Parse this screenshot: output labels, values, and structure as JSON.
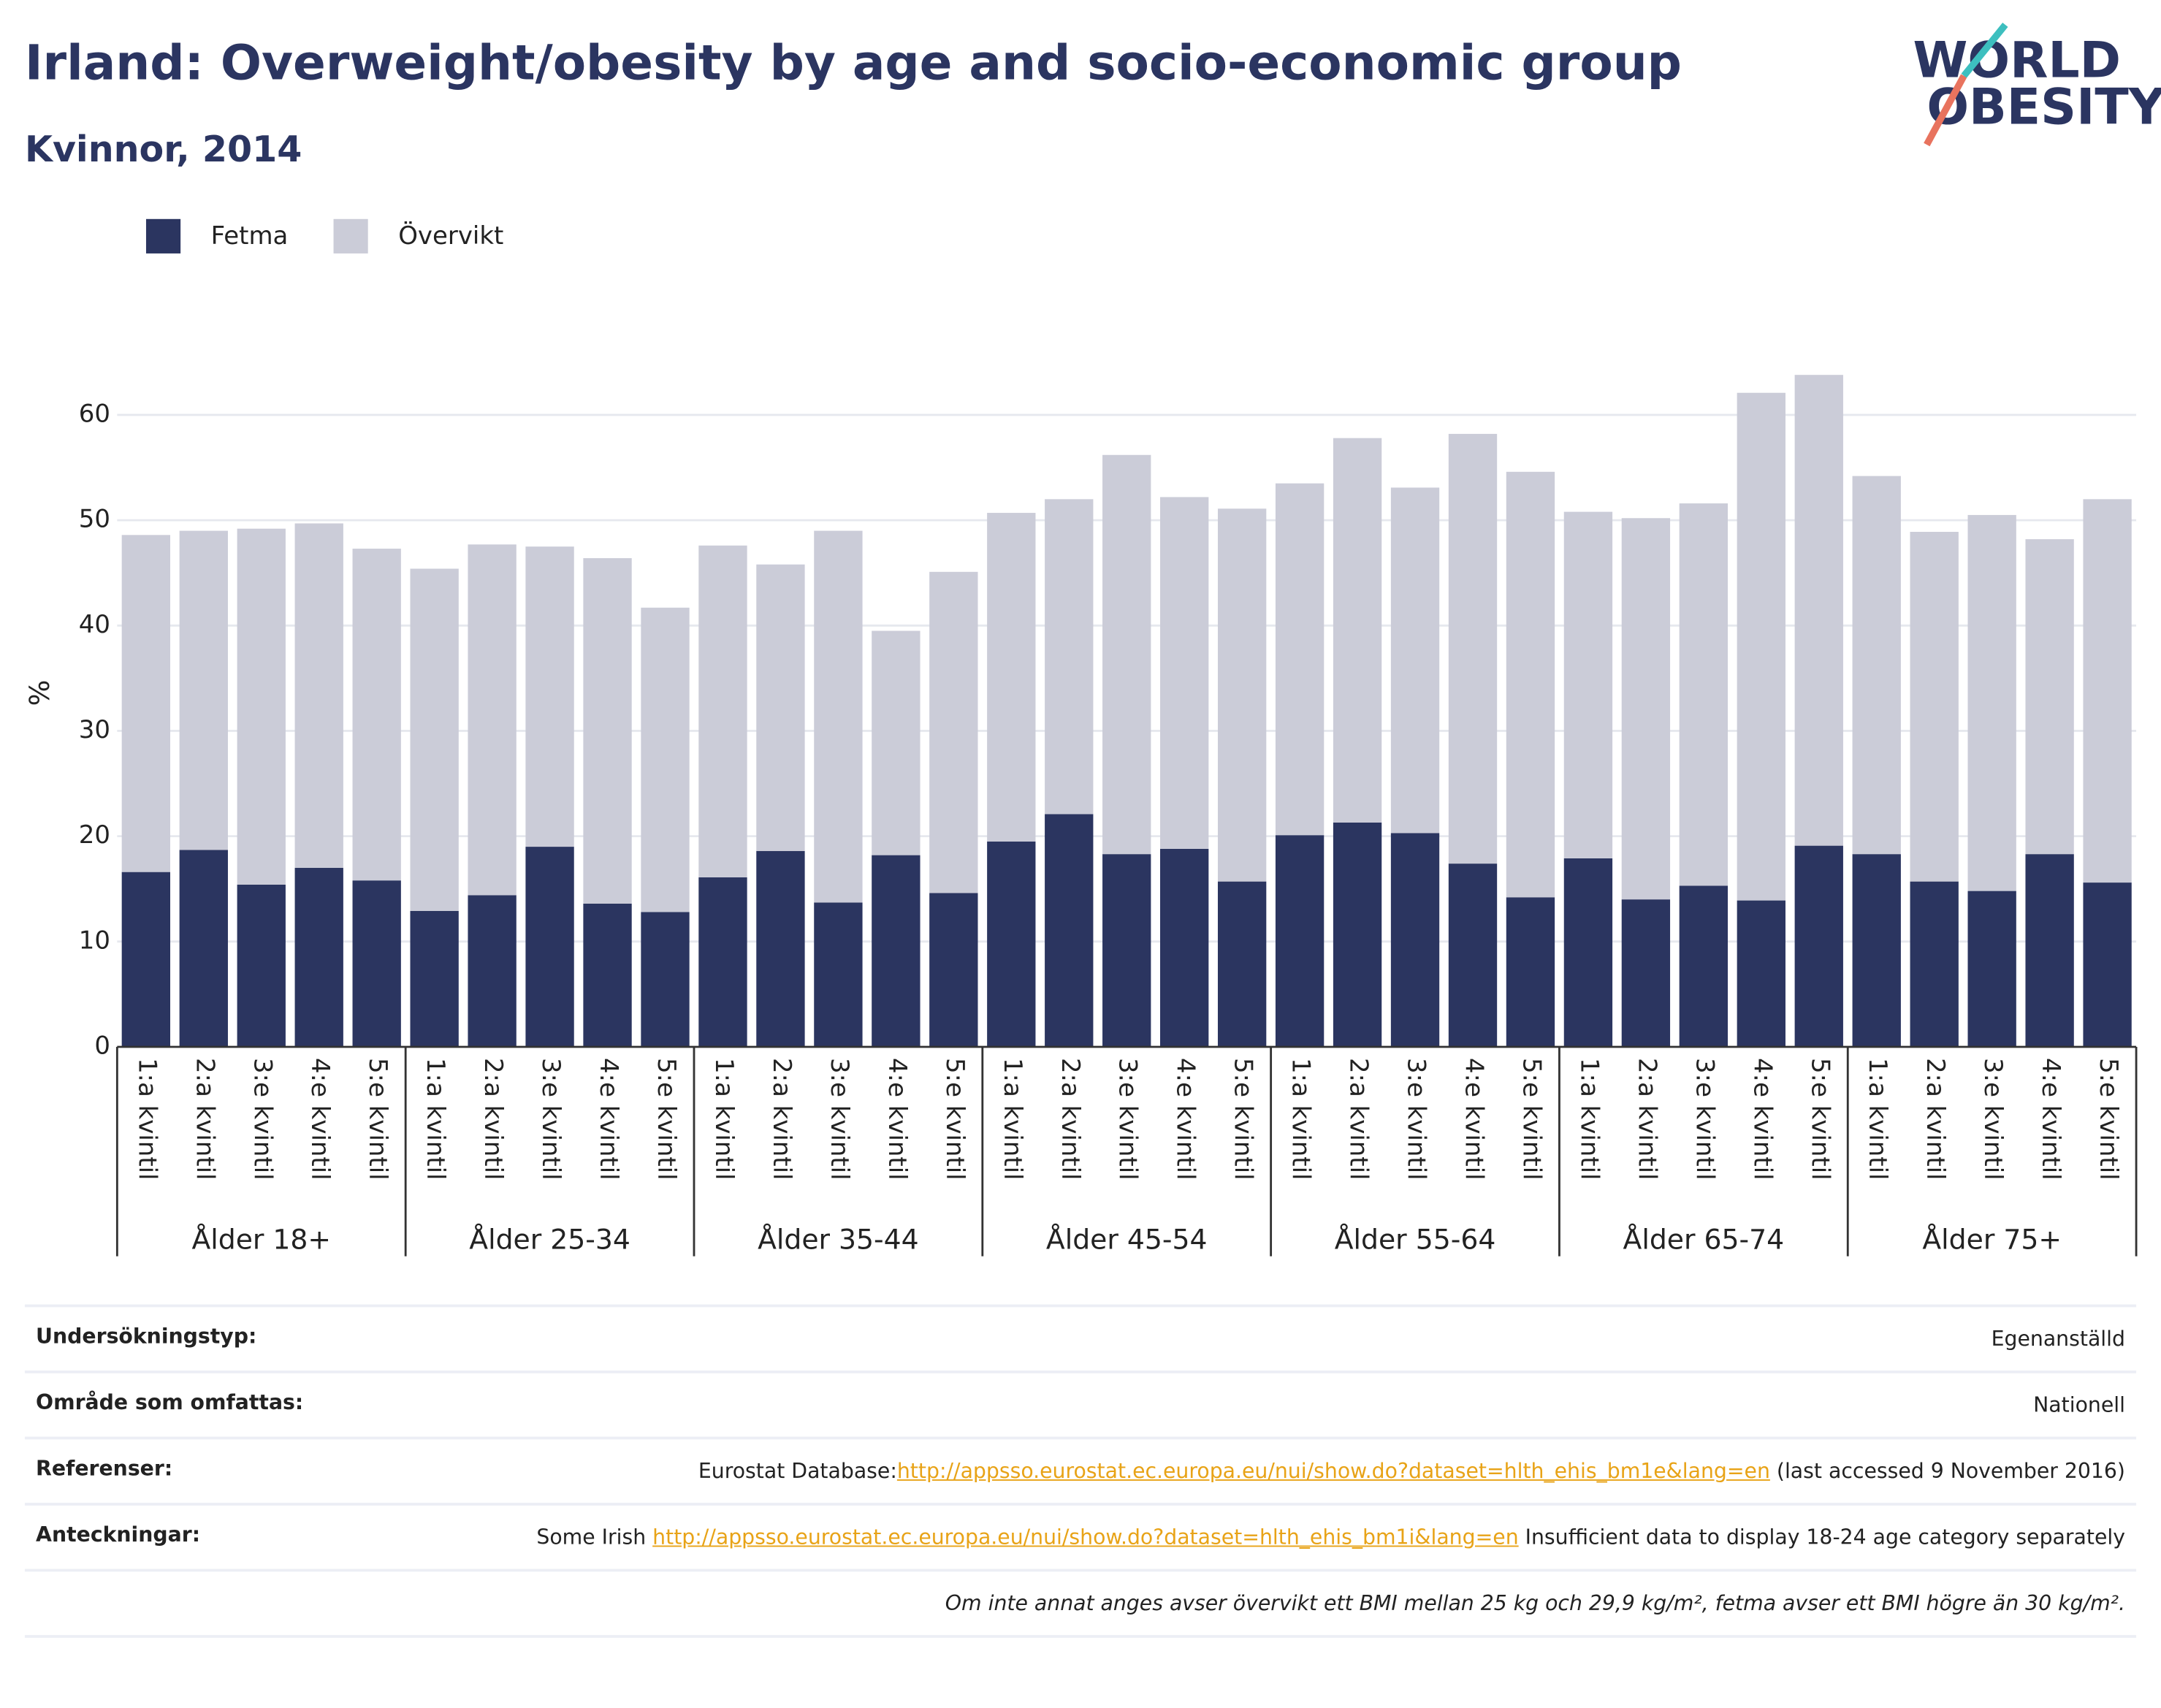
{
  "logo": {
    "line1": "WORLD",
    "line2": "OBESITY"
  },
  "chart_data": {
    "type": "stacked_bar",
    "title": "Irland: Overweight/obesity by age and socio-economic group",
    "subtitle": "Kvinnor, 2014",
    "ylabel": "%",
    "ylim": [
      0,
      65
    ],
    "yticks": [
      0,
      10,
      20,
      30,
      40,
      50,
      60
    ],
    "grid": true,
    "legend": "top-left",
    "groups": [
      "Ålder 18+",
      "Ålder 25-34",
      "Ålder 35-44",
      "Ålder 45-54",
      "Ålder 55-64",
      "Ålder 65-74",
      "Ålder 75+"
    ],
    "categories": [
      "1:a kvintil",
      "2:a kvintil",
      "3:e kvintil",
      "4:e kvintil",
      "5:e kvintil",
      "1:a kvintil",
      "2:a kvintil",
      "3:e kvintil",
      "4:e kvintil",
      "5:e kvintil",
      "1:a kvintil",
      "2:a kvintil",
      "3:e kvintil",
      "4:e kvintil",
      "5:e kvintil",
      "1:a kvintil",
      "2:a kvintil",
      "3:e kvintil",
      "4:e kvintil",
      "5:e kvintil",
      "1:a kvintil",
      "2:a kvintil",
      "3:e kvintil",
      "4:e kvintil",
      "5:e kvintil",
      "1:a kvintil",
      "2:a kvintil",
      "3:e kvintil",
      "4:e kvintil",
      "5:e kvintil",
      "1:a kvintil",
      "2:a kvintil",
      "3:e kvintil",
      "4:e kvintil",
      "5:e kvintil"
    ],
    "series": [
      {
        "name": "Fetma",
        "color": "#2b3560",
        "values": [
          16.6,
          18.7,
          15.4,
          17.0,
          15.8,
          12.9,
          14.4,
          19.0,
          13.6,
          12.8,
          16.1,
          18.6,
          13.7,
          18.2,
          14.6,
          19.5,
          22.1,
          18.3,
          18.8,
          15.7,
          20.1,
          21.3,
          20.3,
          17.4,
          14.2,
          17.9,
          14.0,
          15.3,
          13.9,
          19.1,
          18.3,
          15.7,
          14.8,
          18.3,
          15.6
        ]
      },
      {
        "name": "Övervikt",
        "color": "#cbccd8",
        "values": [
          32.0,
          30.3,
          33.8,
          32.7,
          31.5,
          32.5,
          33.3,
          28.5,
          32.8,
          28.9,
          31.5,
          27.2,
          35.3,
          21.3,
          30.5,
          31.2,
          29.9,
          37.9,
          33.4,
          35.4,
          33.4,
          36.5,
          32.8,
          40.8,
          40.4,
          32.9,
          36.2,
          36.3,
          48.2,
          44.7,
          35.9,
          33.2,
          35.7,
          29.9,
          36.4
        ]
      }
    ]
  },
  "table": {
    "rows": [
      {
        "label": "Undersökningstyp:",
        "parts": [
          {
            "text": "Egenanställd"
          }
        ]
      },
      {
        "label": "Område som omfattas:",
        "parts": [
          {
            "text": "Nationell"
          }
        ]
      },
      {
        "label": "Referenser:",
        "parts": [
          {
            "text": "Eurostat Database:"
          },
          {
            "link": "http://appsso.eurostat.ec.europa.eu/nui/show.do?dataset=hlth_ehis_bm1e&lang=en"
          },
          {
            "text": " (last accessed 9 November 2016)"
          }
        ]
      },
      {
        "label": "Anteckningar:",
        "parts": [
          {
            "text": "Some Irish "
          },
          {
            "link": "http://appsso.eurostat.ec.europa.eu/nui/show.do?dataset=hlth_ehis_bm1i&lang=en"
          },
          {
            "text": " Insufficient data to display 18-24 age category separately"
          }
        ]
      }
    ],
    "footnote": "Om inte annat anges avser övervikt ett BMI mellan 25 kg och 29,9 kg/m², fetma avser ett BMI högre än 30 kg/m²."
  }
}
